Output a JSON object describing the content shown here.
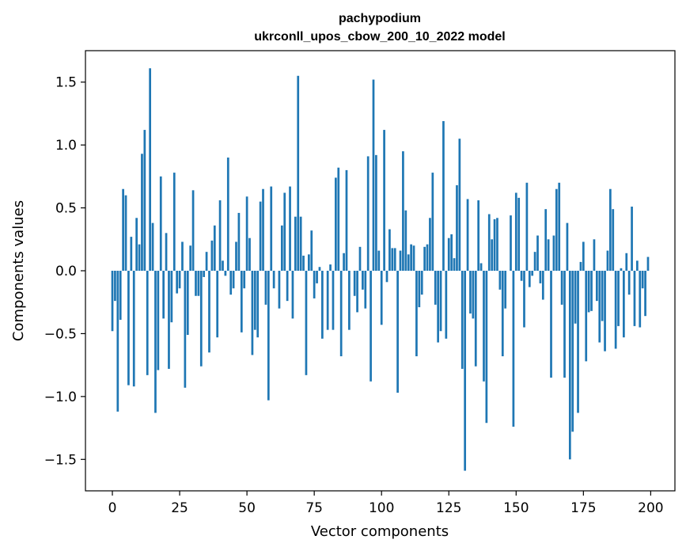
{
  "chart_data": {
    "type": "bar",
    "title_line1": "pachypodium",
    "title_line2": "ukrconll_upos_cbow_200_10_2022 model",
    "xlabel": "Vector components",
    "ylabel": "Components values",
    "xlim": [
      -10,
      209
    ],
    "ylim": [
      -1.75,
      1.75
    ],
    "x_ticks": [
      0,
      25,
      50,
      75,
      100,
      125,
      150,
      175,
      200
    ],
    "y_ticks": [
      -1.5,
      -1.0,
      -0.5,
      0.0,
      0.5,
      1.0,
      1.5
    ],
    "x_tick_labels": [
      "0",
      "25",
      "50",
      "75",
      "100",
      "125",
      "150",
      "175",
      "200"
    ],
    "y_tick_labels": [
      "−1.5",
      "−1.0",
      "−0.5",
      "0.0",
      "0.5",
      "1.0",
      "1.5"
    ],
    "bar_color": "#1f77b4",
    "grid": false,
    "values": [
      -0.48,
      -0.24,
      -1.12,
      -0.39,
      0.65,
      0.6,
      -0.91,
      0.27,
      -0.92,
      0.42,
      0.21,
      0.93,
      1.12,
      -0.83,
      1.61,
      0.38,
      -1.13,
      -0.79,
      0.75,
      -0.38,
      0.3,
      -0.78,
      -0.41,
      0.78,
      -0.18,
      -0.14,
      0.23,
      -0.93,
      -0.51,
      0.2,
      0.64,
      -0.2,
      -0.2,
      -0.76,
      -0.05,
      0.15,
      -0.65,
      0.24,
      0.36,
      -0.53,
      0.56,
      0.08,
      -0.04,
      0.9,
      -0.19,
      -0.14,
      0.23,
      0.46,
      -0.49,
      -0.14,
      0.59,
      0.26,
      -0.67,
      -0.47,
      -0.53,
      0.55,
      0.65,
      -0.27,
      -1.03,
      0.67,
      -0.14,
      0.0,
      -0.3,
      0.36,
      0.62,
      -0.24,
      0.67,
      -0.38,
      0.43,
      1.55,
      0.43,
      0.12,
      -0.83,
      0.13,
      0.32,
      -0.22,
      -0.1,
      0.03,
      -0.54,
      0.0,
      -0.47,
      0.05,
      -0.47,
      0.74,
      0.82,
      -0.68,
      0.14,
      0.8,
      -0.47,
      0.0,
      -0.2,
      -0.33,
      0.19,
      -0.15,
      -0.3,
      0.91,
      -0.88,
      1.52,
      0.92,
      0.16,
      -0.43,
      1.12,
      -0.09,
      0.33,
      0.18,
      0.18,
      -0.97,
      0.16,
      0.95,
      0.48,
      0.13,
      0.21,
      0.2,
      -0.68,
      -0.29,
      -0.19,
      0.19,
      0.21,
      0.42,
      0.78,
      -0.27,
      -0.57,
      -0.48,
      1.19,
      -0.54,
      0.26,
      0.29,
      0.1,
      0.68,
      1.05,
      -0.78,
      -1.59,
      0.57,
      -0.34,
      -0.38,
      -0.76,
      0.56,
      0.06,
      -0.88,
      -1.21,
      0.45,
      0.25,
      0.41,
      0.42,
      -0.15,
      -0.68,
      -0.3,
      0.0,
      0.44,
      -1.24,
      0.62,
      0.58,
      -0.08,
      -0.45,
      0.7,
      -0.13,
      -0.04,
      0.15,
      0.28,
      -0.1,
      -0.23,
      0.49,
      0.25,
      -0.85,
      0.28,
      0.65,
      0.7,
      -0.27,
      -0.85,
      0.38,
      -1.5,
      -1.28,
      -0.42,
      -1.13,
      0.07,
      0.23,
      -0.72,
      -0.33,
      -0.32,
      0.25,
      -0.24,
      -0.57,
      -0.4,
      -0.64,
      0.16,
      0.65,
      0.49,
      -0.62,
      -0.44,
      0.02,
      -0.53,
      0.14,
      -0.19,
      0.51,
      -0.44,
      0.08,
      -0.45,
      -0.14,
      -0.36,
      0.11
    ]
  }
}
